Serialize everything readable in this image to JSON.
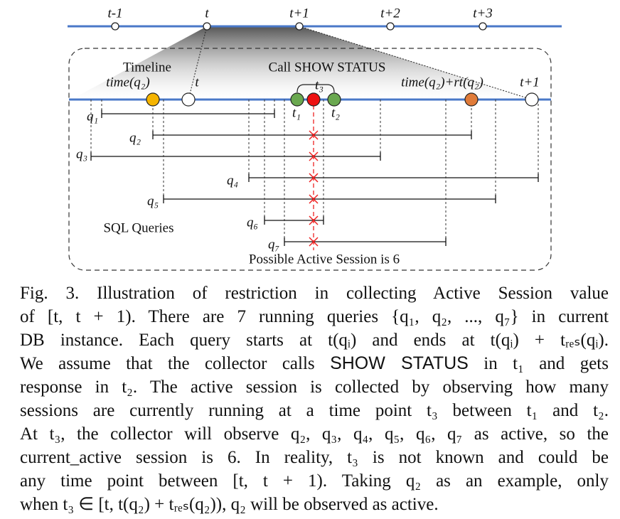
{
  "top_timeline": {
    "labels": [
      "t-1",
      "t",
      "t+1",
      "t+2",
      "t+3"
    ]
  },
  "figure": {
    "timeline": "Timeline",
    "call": "Call SHOW STATUS",
    "time_q2": "time(q₂)",
    "t": "t",
    "t3": "t₃",
    "t1": "t₁",
    "t2": "t₂",
    "time_end": "time(q₂)+rt(q₂)",
    "t_plus_1": "t+1",
    "queries": [
      "q₁",
      "q₂",
      "q₃",
      "q₄",
      "q₅",
      "q₆",
      "q₇"
    ],
    "sql": "SQL Queries",
    "possible": "Possible Active Session is 6"
  },
  "caption": {
    "lines": [
      "Fig. 3.  Illustration of restriction in collecting Active Session value",
      "of [t, t + 1). There are 7 running queries {q₁, q₂, ..., q₇} in current",
      "DB instance. Each query starts at t(qᵢ) and ends at t(qᵢ) + tᵣₑₛ(qᵢ).",
      [
        "We assume that the collector calls ",
        "SHOW STATUS",
        " in t₁ and gets"
      ],
      "response in t₂. The active session is collected by observing how many",
      "sessions are currently running at a time point t₃ between t₁ and t₂.",
      "At t₃, the collector will observe q₂, q₃, q₄, q₅, q₆, q₇ as active, so the",
      "current_active session is 6. In reality, t₃ is not known and could be",
      "any time point between [t, t + 1). Taking q₂ as an example, only",
      "when t₃ ∈ [t, t(q₂) + tᵣₑₛ(q₂)), q₂ will be observed as active."
    ]
  }
}
